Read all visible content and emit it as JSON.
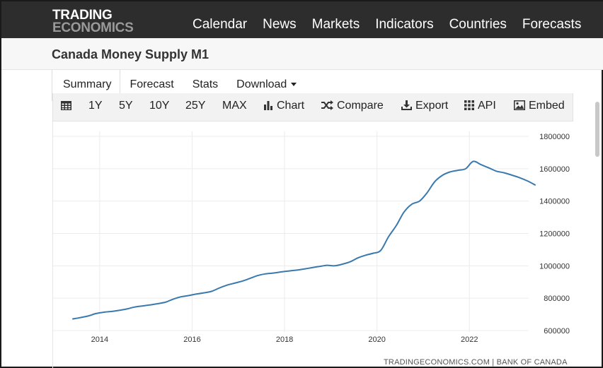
{
  "header": {
    "logo_line1": "TRADING",
    "logo_line2": "ECONOMICS",
    "nav": [
      "Calendar",
      "News",
      "Markets",
      "Indicators",
      "Countries",
      "Forecasts"
    ]
  },
  "page": {
    "title": "Canada Money Supply M1"
  },
  "tabs": {
    "summary": "Summary",
    "forecast": "Forecast",
    "stats": "Stats",
    "download": "Download"
  },
  "toolbar": {
    "ranges": [
      "1Y",
      "5Y",
      "10Y",
      "25Y",
      "MAX"
    ],
    "chart": "Chart",
    "compare": "Compare",
    "export": "Export",
    "api": "API",
    "embed": "Embed",
    "icons": {
      "table": "table-icon",
      "chart": "bar-chart-icon",
      "compare": "shuffle-icon",
      "export": "download-icon",
      "api": "grid-icon",
      "embed": "image-icon"
    }
  },
  "colors": {
    "line": "#3a79ad",
    "topbar": "#2d2d2d"
  },
  "source": "TRADINGECONOMICS.COM  |  BANK OF CANADA",
  "chart_data": {
    "type": "line",
    "title": "",
    "xlabel": "",
    "ylabel": "",
    "x_ticks": [
      "2014",
      "2016",
      "2018",
      "2020",
      "2022"
    ],
    "y_ticks": [
      "600000",
      "800000",
      "1000000",
      "1200000",
      "1400000",
      "1600000",
      "1800000"
    ],
    "ylim": [
      600000,
      1800000
    ],
    "xlim": [
      2013.42,
      2023.42
    ],
    "grid": true,
    "series": [
      {
        "name": "",
        "x": [
          2013.42,
          2013.58,
          2013.75,
          2013.92,
          2014.08,
          2014.25,
          2014.42,
          2014.58,
          2014.75,
          2014.92,
          2015.08,
          2015.25,
          2015.42,
          2015.58,
          2015.75,
          2015.92,
          2016.08,
          2016.25,
          2016.42,
          2016.58,
          2016.75,
          2016.92,
          2017.08,
          2017.25,
          2017.42,
          2017.58,
          2017.75,
          2017.92,
          2018.08,
          2018.25,
          2018.42,
          2018.58,
          2018.75,
          2018.92,
          2019.08,
          2019.25,
          2019.42,
          2019.58,
          2019.75,
          2019.92,
          2020.08,
          2020.25,
          2020.42,
          2020.58,
          2020.75,
          2020.92,
          2021.08,
          2021.25,
          2021.42,
          2021.58,
          2021.75,
          2021.92,
          2022.08,
          2022.25,
          2022.42,
          2022.58,
          2022.75,
          2022.92,
          2023.08,
          2023.25,
          2023.42
        ],
        "values": [
          672000,
          680000,
          690000,
          705000,
          713000,
          718000,
          725000,
          733000,
          745000,
          752000,
          758000,
          766000,
          775000,
          793000,
          808000,
          816000,
          825000,
          833000,
          842000,
          862000,
          880000,
          893000,
          905000,
          922000,
          940000,
          950000,
          955000,
          962000,
          968000,
          973000,
          980000,
          988000,
          996000,
          1003000,
          1000000,
          1010000,
          1025000,
          1048000,
          1065000,
          1078000,
          1095000,
          1180000,
          1250000,
          1330000,
          1380000,
          1400000,
          1450000,
          1520000,
          1560000,
          1580000,
          1590000,
          1600000,
          1645000,
          1625000,
          1605000,
          1585000,
          1575000,
          1560000,
          1545000,
          1525000,
          1500000
        ]
      }
    ]
  }
}
